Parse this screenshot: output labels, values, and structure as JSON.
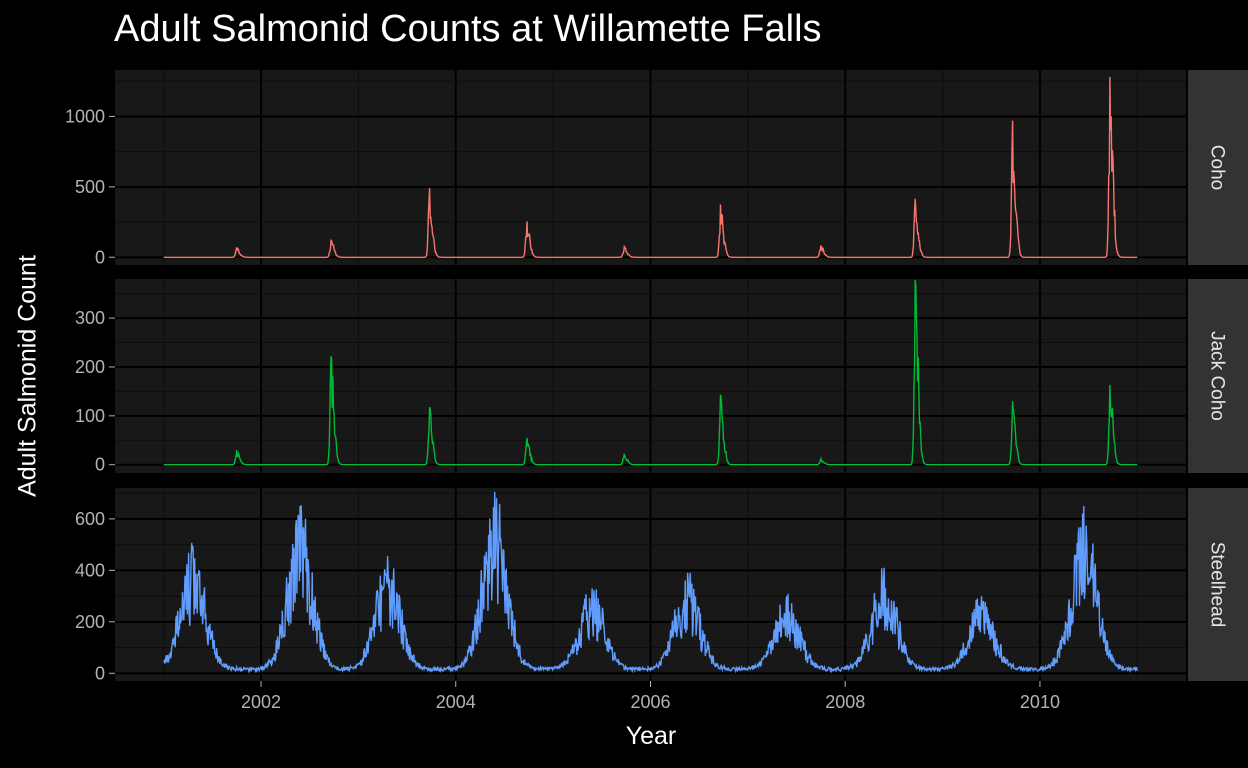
{
  "chart_data": {
    "type": "line",
    "title": "Adult Salmonid Counts at Willamette Falls",
    "xlabel": "Year",
    "ylabel": "Adult Salmonid Count",
    "xlim": [
      2000.5,
      2011.5
    ],
    "x_ticks": [
      "2002",
      "2004",
      "2006",
      "2008",
      "2010"
    ],
    "grid": "on",
    "background": "dark",
    "facets": [
      {
        "name": "Coho",
        "color": "#F8766D",
        "ylim": [
          -55,
          1330
        ],
        "y_ticks": [
          "0",
          "500",
          "1000"
        ],
        "annual_peaks": [
          {
            "x": 2001.75,
            "y": 70
          },
          {
            "x": 2002.72,
            "y": 120
          },
          {
            "x": 2003.73,
            "y": 490
          },
          {
            "x": 2004.73,
            "y": 255
          },
          {
            "x": 2005.73,
            "y": 75
          },
          {
            "x": 2006.72,
            "y": 375
          },
          {
            "x": 2007.75,
            "y": 85
          },
          {
            "x": 2008.72,
            "y": 415
          },
          {
            "x": 2009.72,
            "y": 970
          },
          {
            "x": 2010.72,
            "y": 1280
          }
        ]
      },
      {
        "name": "Jack Coho",
        "color": "#00BA38",
        "ylim": [
          -17,
          380
        ],
        "y_ticks": [
          "0",
          "100",
          "200",
          "300"
        ],
        "annual_peaks": [
          {
            "x": 2001.75,
            "y": 30
          },
          {
            "x": 2002.72,
            "y": 222
          },
          {
            "x": 2003.73,
            "y": 118
          },
          {
            "x": 2004.73,
            "y": 55
          },
          {
            "x": 2005.73,
            "y": 22
          },
          {
            "x": 2006.72,
            "y": 143
          },
          {
            "x": 2007.75,
            "y": 12
          },
          {
            "x": 2008.72,
            "y": 378
          },
          {
            "x": 2009.72,
            "y": 130
          },
          {
            "x": 2010.72,
            "y": 163
          }
        ]
      },
      {
        "name": "Steelhead",
        "color": "#619CFF",
        "ylim": [
          -30,
          720
        ],
        "y_ticks": [
          "0",
          "200",
          "400",
          "600"
        ],
        "annual_peaks": [
          {
            "x": 2001.3,
            "y": 495
          },
          {
            "x": 2002.4,
            "y": 650
          },
          {
            "x": 2003.3,
            "y": 455
          },
          {
            "x": 2004.4,
            "y": 705
          },
          {
            "x": 2005.4,
            "y": 330
          },
          {
            "x": 2006.38,
            "y": 390
          },
          {
            "x": 2007.4,
            "y": 300
          },
          {
            "x": 2008.4,
            "y": 410
          },
          {
            "x": 2009.4,
            "y": 300
          },
          {
            "x": 2010.45,
            "y": 650
          }
        ]
      }
    ]
  }
}
